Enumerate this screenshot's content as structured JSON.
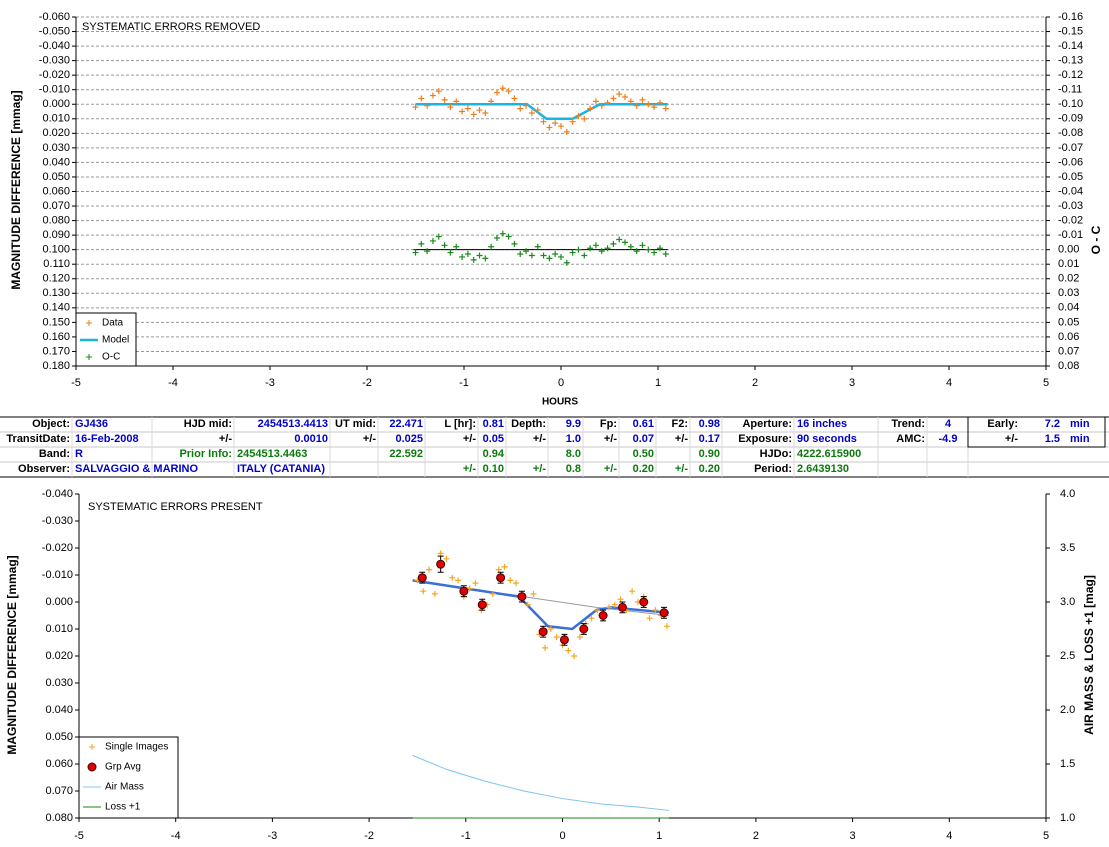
{
  "chart_data": [
    {
      "type": "scatter",
      "annotation": "SYSTEMATIC ERRORS REMOVED",
      "xlabel": "HOURS",
      "ylabel": "MAGNITUDE DIFFERENCE [mmag]",
      "y2label": "O - C",
      "xlim": [
        -5,
        5
      ],
      "xticks": [
        -5,
        -4,
        -3,
        -2,
        -1,
        0,
        1,
        2,
        3,
        4,
        5
      ],
      "ylim": [
        -0.06,
        0.18
      ],
      "y_reversed": true,
      "yticks": [
        {
          "value": -0.06,
          "label": "-0.060"
        },
        {
          "value": -0.05,
          "label": "-0.050"
        },
        {
          "value": -0.04,
          "label": "-0.040"
        },
        {
          "value": -0.03,
          "label": "-0.030"
        },
        {
          "value": -0.02,
          "label": "-0.020"
        },
        {
          "value": -0.01,
          "label": "-0.010"
        },
        {
          "value": 0,
          "label": "0.000"
        },
        {
          "value": 0.01,
          "label": "0.010"
        },
        {
          "value": 0.02,
          "label": "0.020"
        },
        {
          "value": 0.03,
          "label": "0.030"
        },
        {
          "value": 0.04,
          "label": "0.040"
        },
        {
          "value": 0.05,
          "label": "0.050"
        },
        {
          "value": 0.06,
          "label": "0.060"
        },
        {
          "value": 0.07,
          "label": "0.070"
        },
        {
          "value": 0.08,
          "label": "0.080"
        },
        {
          "value": 0.09,
          "label": "0.090"
        },
        {
          "value": 0.1,
          "label": "0.100"
        },
        {
          "value": 0.11,
          "label": "0.110"
        },
        {
          "value": 0.12,
          "label": "0.120"
        },
        {
          "value": 0.13,
          "label": "0.130"
        },
        {
          "value": 0.14,
          "label": "0.140"
        },
        {
          "value": 0.15,
          "label": "0.150"
        },
        {
          "value": 0.16,
          "label": "0.160"
        },
        {
          "value": 0.17,
          "label": "0.170"
        },
        {
          "value": 0.18,
          "label": "0.180"
        }
      ],
      "y2lim": [
        -0.16,
        0.08
      ],
      "y2_reversed": true,
      "y2ticks": [
        -0.16,
        -0.15,
        -0.14,
        -0.13,
        -0.12,
        -0.11,
        {
          "value": -0.1,
          "label": "-0.10"
        },
        -0.09,
        -0.08,
        -0.07,
        -0.06,
        -0.05,
        -0.04,
        -0.03,
        -0.02,
        -0.01,
        {
          "value": 0,
          "label": "0.00"
        },
        0.01,
        0.02,
        0.03,
        0.04,
        0.05,
        0.06,
        0.07,
        0.08
      ],
      "grid": true,
      "legend": "lower left",
      "series": [
        {
          "name": "Data",
          "color": "#f07d1a",
          "marker": "+",
          "x": [
            -1.5,
            -1.44,
            -1.38,
            -1.32,
            -1.26,
            -1.2,
            -1.14,
            -1.08,
            -1.02,
            -0.96,
            -0.9,
            -0.84,
            -0.78,
            -0.72,
            -0.66,
            -0.6,
            -0.54,
            -0.48,
            -0.42,
            -0.36,
            -0.3,
            -0.24,
            -0.18,
            -0.12,
            -0.06,
            0,
            0.06,
            0.12,
            0.18,
            0.24,
            0.3,
            0.36,
            0.42,
            0.48,
            0.54,
            0.6,
            0.66,
            0.72,
            0.78,
            0.84,
            0.9,
            0.96,
            1.02,
            1.08
          ],
          "values": [
            0.002,
            -0.004,
            0.001,
            -0.006,
            -0.009,
            -0.003,
            0.002,
            -0.002,
            0.005,
            0.003,
            0.007,
            0.004,
            0.006,
            -0.002,
            -0.008,
            -0.011,
            -0.009,
            -0.004,
            0.003,
            0.001,
            0.006,
            0.004,
            0.012,
            0.016,
            0.013,
            0.015,
            0.019,
            0.012,
            0.008,
            0.01,
            0.003,
            -0.002,
            0.001,
            -0.001,
            -0.004,
            -0.007,
            -0.005,
            -0.002,
            0.001,
            -0.003,
            0,
            0.002,
            -0.001,
            0.003
          ]
        },
        {
          "name": "Model",
          "color": "#19b4e6",
          "line": "thick",
          "x": [
            -1.5,
            -0.35,
            -0.15,
            0.12,
            0.4,
            1.1
          ],
          "values": [
            0,
            0,
            0.01,
            0.01,
            0,
            0
          ]
        },
        {
          "name": "O-C",
          "color": "#1a8a1a",
          "marker": "+",
          "axis": "y2",
          "x": [
            -1.5,
            -1.44,
            -1.38,
            -1.32,
            -1.26,
            -1.2,
            -1.14,
            -1.08,
            -1.02,
            -0.96,
            -0.9,
            -0.84,
            -0.78,
            -0.72,
            -0.66,
            -0.6,
            -0.54,
            -0.48,
            -0.42,
            -0.36,
            -0.3,
            -0.24,
            -0.18,
            -0.12,
            -0.06,
            0,
            0.06,
            0.12,
            0.18,
            0.24,
            0.3,
            0.36,
            0.42,
            0.48,
            0.54,
            0.6,
            0.66,
            0.72,
            0.78,
            0.84,
            0.9,
            0.96,
            1.02,
            1.08
          ],
          "values": [
            0.002,
            -0.004,
            0.001,
            -0.006,
            -0.009,
            -0.003,
            0.002,
            -0.002,
            0.005,
            0.003,
            0.007,
            0.004,
            0.006,
            -0.002,
            -0.008,
            -0.011,
            -0.009,
            -0.004,
            0.003,
            0.001,
            0.004,
            -0.002,
            0.004,
            0.006,
            0.003,
            0.005,
            0.009,
            0.002,
            0,
            0.004,
            -0.001,
            -0.003,
            0.001,
            -0.001,
            -0.004,
            -0.007,
            -0.005,
            -0.002,
            0.001,
            -0.003,
            0,
            0.002,
            -0.001,
            0.003
          ]
        },
        {
          "color": "#000000",
          "line": "thin",
          "axis": "y2",
          "x": [
            -1.52,
            1.1
          ],
          "values": [
            0,
            0
          ]
        }
      ]
    },
    {
      "type": "scatter",
      "annotation": "SYSTEMATIC ERRORS PRESENT",
      "ylabel": "MAGNITUDE DIFFERENCE [mmag]",
      "y2label": "AIR MASS & LOSS +1 [mag]",
      "xlim": [
        -5,
        5
      ],
      "xticks": [
        -5,
        -4,
        -3,
        -2,
        -1,
        0,
        1,
        2,
        3,
        4,
        5
      ],
      "ylim": [
        -0.04,
        0.08
      ],
      "y_reversed": true,
      "yticks": [
        {
          "value": -0.04,
          "label": "-0.040"
        },
        {
          "value": -0.03,
          "label": "-0.030"
        },
        {
          "value": -0.02,
          "label": "-0.020"
        },
        {
          "value": -0.01,
          "label": "-0.010"
        },
        {
          "value": 0,
          "label": "0.000"
        },
        {
          "value": 0.01,
          "label": "0.010"
        },
        {
          "value": 0.02,
          "label": "0.020"
        },
        {
          "value": 0.03,
          "label": "0.030"
        },
        {
          "value": 0.04,
          "label": "0.040"
        },
        {
          "value": 0.05,
          "label": "0.050"
        },
        {
          "value": 0.06,
          "label": "0.060"
        },
        {
          "value": 0.07,
          "label": "0.070"
        },
        {
          "value": 0.08,
          "label": "0.080"
        }
      ],
      "y2lim": [
        1,
        4
      ],
      "y2_reversed": false,
      "y2ticks": [
        {
          "value": 1,
          "label": "1.0"
        },
        1.5,
        {
          "value": 2,
          "label": "2.0"
        },
        2.5,
        {
          "value": 3,
          "label": "3.0"
        },
        3.5,
        {
          "value": 4,
          "label": "4.0"
        }
      ],
      "grid": false,
      "legend": "lower left",
      "series": [
        {
          "name": "Single Images",
          "color": "#f5a623",
          "marker": "+",
          "x": [
            -1.5,
            -1.44,
            -1.38,
            -1.32,
            -1.26,
            -1.2,
            -1.14,
            -1.08,
            -1.02,
            -0.96,
            -0.9,
            -0.84,
            -0.78,
            -0.72,
            -0.66,
            -0.6,
            -0.54,
            -0.48,
            -0.42,
            -0.36,
            -0.3,
            -0.24,
            -0.18,
            -0.12,
            -0.06,
            0,
            0.06,
            0.12,
            0.18,
            0.24,
            0.3,
            0.36,
            0.42,
            0.48,
            0.54,
            0.6,
            0.66,
            0.72,
            0.78,
            0.84,
            0.9,
            0.96,
            1.02,
            1.08
          ],
          "values": [
            -0.008,
            -0.004,
            -0.012,
            -0.003,
            -0.018,
            -0.016,
            -0.009,
            -0.008,
            -0.002,
            -0.005,
            -0.007,
            0.003,
            0.001,
            -0.003,
            -0.012,
            -0.013,
            -0.008,
            -0.007,
            -0.001,
            0.001,
            -0.003,
            0.012,
            0.017,
            0.01,
            0.013,
            0.016,
            0.018,
            0.02,
            0.013,
            0.008,
            0.006,
            0.003,
            0.004,
            0.002,
            0.001,
            -0.001,
            0.003,
            -0.004,
            0,
            -0.002,
            0.006,
            0.003,
            0.005,
            0.009
          ]
        },
        {
          "name": "Grp Avg",
          "color": "#e00000",
          "marker": "circle",
          "x": [
            -1.45,
            -1.26,
            -1.02,
            -0.83,
            -0.64,
            -0.42,
            -0.2,
            0.02,
            0.22,
            0.42,
            0.62,
            0.84,
            1.05
          ],
          "values": [
            -0.009,
            -0.014,
            -0.004,
            0.001,
            -0.009,
            -0.002,
            0.011,
            0.014,
            0.01,
            0.005,
            0.002,
            0,
            0.004
          ],
          "errors": [
            0.002,
            0.003,
            0.002,
            0.002,
            0.002,
            0.002,
            0.002,
            0.002,
            0.002,
            0.002,
            0.002,
            0.002,
            0.002
          ]
        },
        {
          "name": "Air Mass",
          "color": "#7cc4ec",
          "line": "thin",
          "axis": "y2",
          "x": [
            -1.55,
            -1.2,
            -0.8,
            -0.4,
            0,
            0.4,
            0.8,
            1.1
          ],
          "values": [
            1.58,
            1.45,
            1.34,
            1.25,
            1.18,
            1.13,
            1.1,
            1.07
          ]
        },
        {
          "name": "Loss +1",
          "color": "#1a8a1a",
          "line": "thin",
          "axis": "y2",
          "x": [
            -1.55,
            1.1
          ],
          "values": [
            1,
            1
          ]
        },
        {
          "color": "#9a9a9a",
          "line": "thin",
          "x": [
            -1.55,
            0.35,
            1.1
          ],
          "values": [
            -0.008,
            0.002,
            0.005
          ]
        },
        {
          "color": "#3a6fd8",
          "line": "thick",
          "x": [
            -1.55,
            -1,
            -0.45,
            -0.15,
            0.1,
            0.35,
            0.5,
            1.1
          ],
          "values": [
            -0.008,
            -0.005,
            -0.002,
            0.009,
            0.01,
            0.003,
            0.002,
            0.004
          ]
        }
      ]
    }
  ],
  "table": {
    "rows": [
      [
        "Object:",
        "GJ436",
        "HJD mid:",
        "2454513.4413",
        "UT mid:",
        "22.471",
        "L [hr]:",
        "0.81",
        "Depth:",
        "9.9",
        "Fp:",
        "0.61",
        "F2:",
        "0.98",
        "Aperture:",
        "16 inches",
        "Trend:",
        "4",
        null,
        "Early:",
        "7.2",
        "min"
      ],
      [
        "TransitDate:",
        "16-Feb-2008",
        "+/-",
        "0.0010",
        "+/-",
        "0.025",
        "+/-",
        "0.05",
        "+/-",
        "1.0",
        "+/-",
        "0.07",
        "+/-",
        "0.17",
        "Exposure:",
        "90 seconds",
        "AMC:",
        "-4.9",
        null,
        "+/-",
        "1.5",
        "min"
      ],
      [
        "Band:",
        "R",
        "Prior Info:",
        "2454513.4463",
        null,
        "22.592",
        null,
        "0.94",
        null,
        "8.0",
        null,
        "0.50",
        null,
        "0.90",
        "HJDo:",
        "4222.615900",
        null,
        null,
        null,
        null,
        null,
        null
      ],
      [
        "Observer:",
        "SALVAGGIO & MARINO",
        null,
        "ITALY (CATANIA)",
        null,
        null,
        "+/-",
        "0.10",
        "+/-",
        "0.8",
        "+/-",
        "0.20",
        "+/-",
        "0.20",
        "Period:",
        "2.6439130",
        null,
        null,
        null,
        null,
        null,
        null
      ]
    ]
  }
}
